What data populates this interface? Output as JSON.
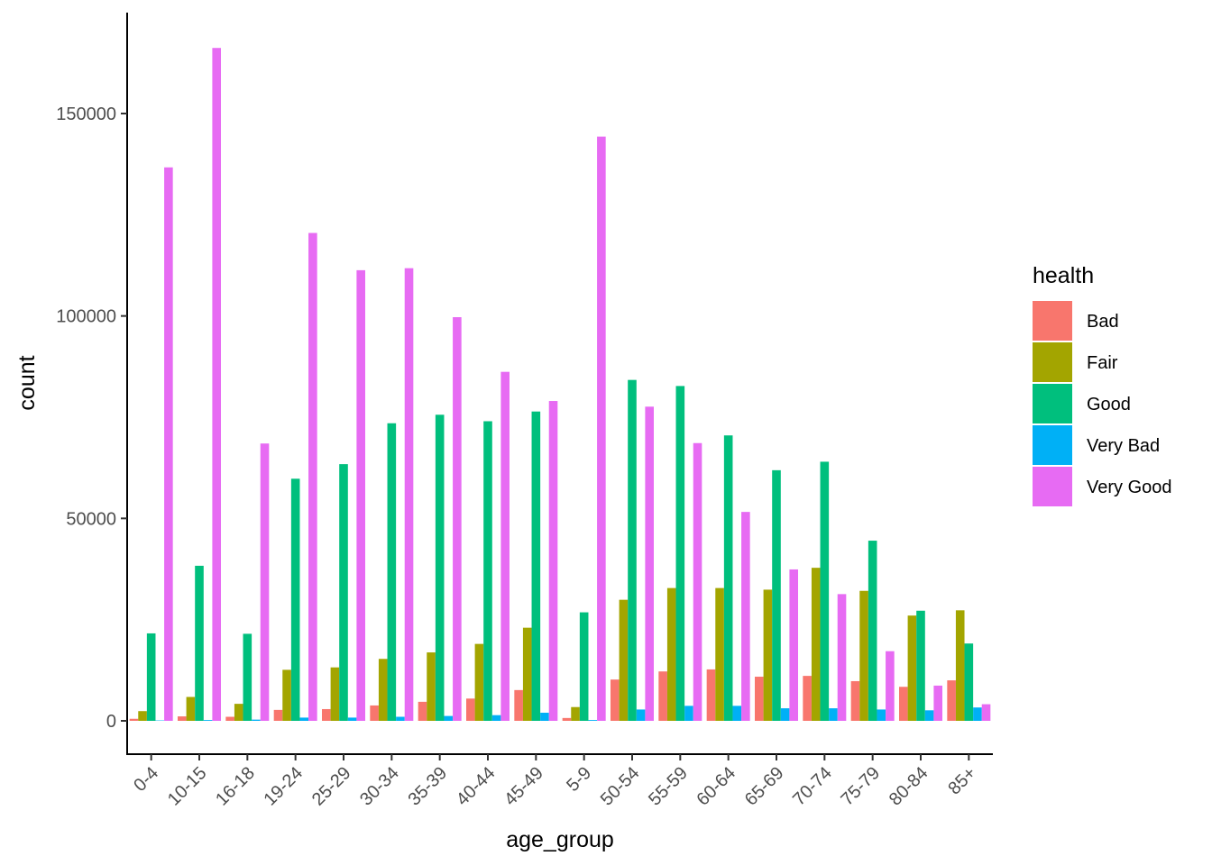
{
  "chart_data": {
    "type": "bar",
    "title": "",
    "xlabel": "age_group",
    "ylabel": "count",
    "ylim": [
      -12000,
      173000
    ],
    "yticks": [
      0,
      50000,
      100000,
      150000
    ],
    "grid": false,
    "legend": {
      "title": "health",
      "position": "right"
    },
    "categories": [
      "0-4",
      "10-15",
      "16-18",
      "19-24",
      "25-29",
      "30-34",
      "35-39",
      "40-44",
      "45-49",
      "5-9",
      "50-54",
      "55-59",
      "60-64",
      "65-69",
      "70-74",
      "75-79",
      "80-84",
      "85+"
    ],
    "series": [
      {
        "name": "Bad",
        "color": "#F8766D",
        "values": [
          500,
          1100,
          1000,
          2700,
          2900,
          3800,
          4700,
          5500,
          7600,
          700,
          10200,
          12200,
          12700,
          10900,
          11100,
          9800,
          8400,
          10000
        ]
      },
      {
        "name": "Fair",
        "color": "#A3A500",
        "values": [
          2400,
          5900,
          4200,
          12600,
          13200,
          15300,
          16900,
          19000,
          23000,
          3400,
          29900,
          32800,
          32800,
          32400,
          37800,
          32100,
          26000,
          27300
        ]
      },
      {
        "name": "Good",
        "color": "#00BF7D",
        "values": [
          21600,
          38300,
          21500,
          59800,
          63400,
          73500,
          75600,
          74000,
          76400,
          26800,
          84200,
          82700,
          70500,
          61900,
          64000,
          44500,
          27200,
          19100
        ]
      },
      {
        "name": "Very Bad",
        "color": "#00B0F6",
        "values": [
          100,
          200,
          300,
          800,
          800,
          1000,
          1200,
          1400,
          2000,
          200,
          2800,
          3700,
          3700,
          3100,
          3100,
          2800,
          2600,
          3300
        ]
      },
      {
        "name": "Very Good",
        "color": "#E76BF3",
        "values": [
          136700,
          166200,
          68500,
          120500,
          111300,
          111800,
          99700,
          86200,
          79000,
          144300,
          77600,
          68600,
          51600,
          37400,
          31300,
          17200,
          8700,
          4100
        ]
      }
    ]
  }
}
